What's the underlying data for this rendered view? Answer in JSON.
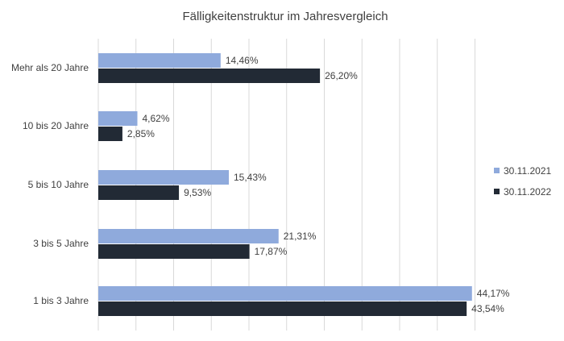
{
  "chart_data": {
    "type": "bar",
    "orientation": "horizontal",
    "title": "Fälligkeitenstruktur im Jahresvergleich",
    "xlabel": "",
    "ylabel": "",
    "categories": [
      "Mehr als 20 Jahre",
      "10 bis 20 Jahre",
      "5 bis 10 Jahre",
      "3 bis 5 Jahre",
      "1 bis 3 Jahre"
    ],
    "series": [
      {
        "name": "30.11.2021",
        "color": "#8faadc",
        "values": [
          14.46,
          4.62,
          15.43,
          21.31,
          44.17
        ],
        "labels": [
          "14,46%",
          "4,62%",
          "15,43%",
          "21,31%",
          "44,17%"
        ]
      },
      {
        "name": "30.11.2022",
        "color": "#222a35",
        "values": [
          26.2,
          2.85,
          9.53,
          17.87,
          43.54
        ],
        "labels": [
          "26,20%",
          "2,85%",
          "9,53%",
          "17,87%",
          "43,54%"
        ]
      }
    ],
    "xlim": [
      0,
      50
    ],
    "gridlines": true,
    "legend_position": "right"
  }
}
